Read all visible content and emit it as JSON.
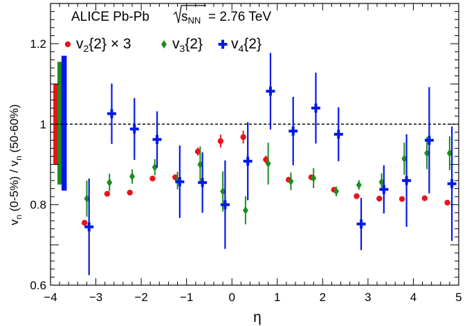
{
  "chart_data": {
    "type": "scatter",
    "title": "ALICE Pb-Pb",
    "energy_label": "= 2.76 TeV",
    "sqrt_label": "s",
    "sqrt_sub": "NN",
    "xlabel": "η",
    "ylabel": {
      "v1": "v",
      "s1": "n",
      "mid": " (0-5%) / v",
      "s2": "n",
      "end": " (50-60%)"
    },
    "xlim": [
      -4,
      5
    ],
    "ylim": [
      0.6,
      1.3
    ],
    "x_ticks": [
      {
        "v": -4,
        "label": "−4"
      },
      {
        "v": -3,
        "label": "−3"
      },
      {
        "v": -2,
        "label": "−2"
      },
      {
        "v": -1,
        "label": "−1"
      },
      {
        "v": 0,
        "label": "0"
      },
      {
        "v": 1,
        "label": "1"
      },
      {
        "v": 2,
        "label": "2"
      },
      {
        "v": 3,
        "label": "3"
      },
      {
        "v": 4,
        "label": "4"
      },
      {
        "v": 5,
        "label": "5"
      }
    ],
    "y_ticks": [
      {
        "v": 0.6,
        "label": "0.6"
      },
      {
        "v": 0.8,
        "label": "0.8"
      },
      {
        "v": 1.0,
        "label": "1"
      },
      {
        "v": 1.2,
        "label": "1.2"
      }
    ],
    "reference_line": 1.0,
    "legend": [
      {
        "label": "v",
        "sub": "2",
        "rest": "{2} × 3",
        "color": "#e8141b",
        "marker": "circle"
      },
      {
        "label": "v",
        "sub": "3",
        "rest": "{2}",
        "color": "#1e8c1e",
        "marker": "diamond"
      },
      {
        "label": "v",
        "sub": "4",
        "rest": "{2}",
        "color": "#0019e6",
        "marker": "cross"
      }
    ],
    "systematic_bands": [
      {
        "series": "v2{2} × 3",
        "color": "#e8141b",
        "x": -3.88,
        "ylow": 0.9,
        "yhigh": 1.1
      },
      {
        "series": "v3{2}",
        "color": "#1e8c1e",
        "x": -3.79,
        "ylow": 0.85,
        "yhigh": 1.155
      },
      {
        "series": "v4{2}",
        "color": "#0019e6",
        "x": -3.7,
        "ylow": 0.835,
        "yhigh": 1.17
      }
    ],
    "series": [
      {
        "name": "v2{2} × 3",
        "color": "#e8141b",
        "marker": "circle",
        "points": [
          {
            "x": -3.25,
            "y": 0.755,
            "err": 0.0
          },
          {
            "x": -2.75,
            "y": 0.827,
            "err": 0.0
          },
          {
            "x": -2.25,
            "y": 0.83,
            "err": 0.0
          },
          {
            "x": -1.75,
            "y": 0.865,
            "err": 0.0
          },
          {
            "x": -1.25,
            "y": 0.868,
            "err": 0.0
          },
          {
            "x": -0.75,
            "y": 0.932,
            "err": 0.01
          },
          {
            "x": -0.25,
            "y": 0.958,
            "err": 0.016
          },
          {
            "x": 0.25,
            "y": 0.968,
            "err": 0.016
          },
          {
            "x": 0.75,
            "y": 0.912,
            "err": 0.01
          },
          {
            "x": 1.25,
            "y": 0.862,
            "err": 0.0
          },
          {
            "x": 1.75,
            "y": 0.868,
            "err": 0.0
          },
          {
            "x": 2.25,
            "y": 0.837,
            "err": 0.0
          },
          {
            "x": 2.75,
            "y": 0.821,
            "err": 0.0
          },
          {
            "x": 3.25,
            "y": 0.815,
            "err": 0.0
          },
          {
            "x": 3.75,
            "y": 0.814,
            "err": 0.0
          },
          {
            "x": 4.25,
            "y": 0.816,
            "err": 0.0
          },
          {
            "x": 4.75,
            "y": 0.805,
            "err": 0.0
          }
        ]
      },
      {
        "name": "v3{2}",
        "color": "#1e8c1e",
        "marker": "diamond",
        "points": [
          {
            "x": -3.2,
            "y": 0.815,
            "err": 0.045
          },
          {
            "x": -2.7,
            "y": 0.855,
            "err": 0.022
          },
          {
            "x": -2.2,
            "y": 0.87,
            "err": 0.018
          },
          {
            "x": -1.7,
            "y": 0.893,
            "err": 0.02
          },
          {
            "x": -1.2,
            "y": 0.86,
            "err": 0.022
          },
          {
            "x": -0.7,
            "y": 0.9,
            "err": 0.045
          },
          {
            "x": -0.2,
            "y": 0.833,
            "err": 0.05
          },
          {
            "x": 0.3,
            "y": 0.786,
            "err": 0.035
          },
          {
            "x": 0.8,
            "y": 0.902,
            "err": 0.052
          },
          {
            "x": 1.3,
            "y": 0.858,
            "err": 0.022
          },
          {
            "x": 1.8,
            "y": 0.866,
            "err": 0.025
          },
          {
            "x": 2.3,
            "y": 0.833,
            "err": 0.012
          },
          {
            "x": 2.8,
            "y": 0.849,
            "err": 0.012
          },
          {
            "x": 3.3,
            "y": 0.856,
            "err": 0.022
          },
          {
            "x": 3.8,
            "y": 0.914,
            "err": 0.04
          },
          {
            "x": 4.3,
            "y": 0.928,
            "err": 0.04
          },
          {
            "x": 4.8,
            "y": 0.928,
            "err": 0.042
          }
        ]
      },
      {
        "name": "v4{2}",
        "color": "#0019e6",
        "marker": "cross",
        "points": [
          {
            "x": -3.15,
            "y": 0.745,
            "err": 0.12
          },
          {
            "x": -2.65,
            "y": 1.026,
            "err": 0.075
          },
          {
            "x": -2.15,
            "y": 0.988,
            "err": 0.077
          },
          {
            "x": -1.65,
            "y": 0.962,
            "err": 0.07
          },
          {
            "x": -1.15,
            "y": 0.857,
            "err": 0.09
          },
          {
            "x": -0.65,
            "y": 0.855,
            "err": 0.075
          },
          {
            "x": -0.15,
            "y": 0.8,
            "err": 0.11
          },
          {
            "x": 0.35,
            "y": 0.908,
            "err": 0.097
          },
          {
            "x": 0.85,
            "y": 1.082,
            "err": 0.095
          },
          {
            "x": 1.35,
            "y": 0.983,
            "err": 0.085
          },
          {
            "x": 1.85,
            "y": 1.04,
            "err": 0.088
          },
          {
            "x": 2.35,
            "y": 0.975,
            "err": 0.067
          },
          {
            "x": 2.85,
            "y": 0.752,
            "err": 0.065
          },
          {
            "x": 3.35,
            "y": 0.838,
            "err": 0.06
          },
          {
            "x": 3.85,
            "y": 0.86,
            "err": 0.115
          },
          {
            "x": 4.35,
            "y": 0.96,
            "err": 0.132
          },
          {
            "x": 4.85,
            "y": 0.852,
            "err": 0.142
          }
        ]
      }
    ]
  }
}
